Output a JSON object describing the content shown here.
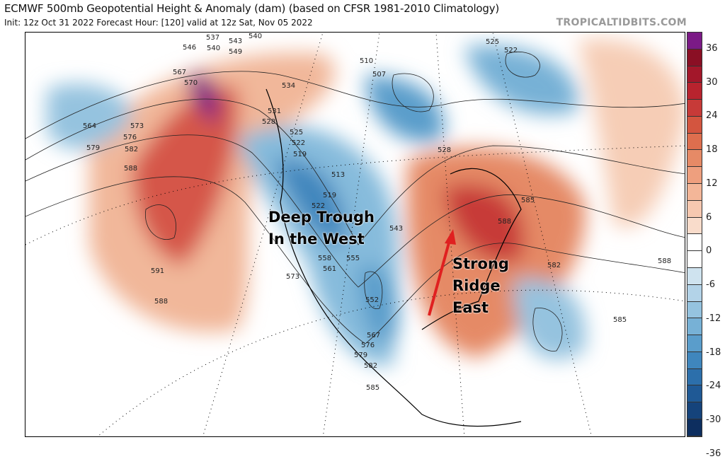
{
  "header": {
    "title": "ECMWF 500mb Geopotential Height & Anomaly (dam) (based on CFSR 1981-2010 Climatology)",
    "subtitle": "Init: 12z Oct 31 2022   Forecast Hour: [120]   valid at 12z Sat, Nov 05 2022",
    "brand": "TROPICALTIDBITS.COM"
  },
  "annotations": {
    "trough": [
      "Deep Trough",
      "In the West"
    ],
    "ridge": [
      "Strong",
      "Ridge",
      "East"
    ],
    "arrow_color": "#e02020"
  },
  "contour_labels": [
    "537",
    "540",
    "543",
    "546",
    "549",
    "540",
    "567",
    "570",
    "534",
    "531",
    "528",
    "525",
    "522",
    "519",
    "564",
    "573",
    "576",
    "579",
    "582",
    "588",
    "591",
    "588",
    "510",
    "507",
    "525",
    "522",
    "528",
    "513",
    "519",
    "522",
    "543",
    "555",
    "558",
    "561",
    "573",
    "552",
    "567",
    "576",
    "579",
    "582",
    "585",
    "585",
    "588",
    "582",
    "585",
    "588"
  ],
  "colorbar": {
    "ticks": [
      "36",
      "30",
      "24",
      "18",
      "12",
      "6",
      "0",
      "-6",
      "-12",
      "-18",
      "-24",
      "-30",
      "-36"
    ],
    "colors": [
      "#7b1a86",
      "#8a0f24",
      "#a3172a",
      "#b8232e",
      "#c73a38",
      "#d3553f",
      "#dd6e4e",
      "#e68a66",
      "#ee9f7e",
      "#f3b698",
      "#f6c8b0",
      "#f9dccb",
      "#ffffff",
      "#ffffff",
      "#cfe3ef",
      "#b3d3e8",
      "#95c3df",
      "#77b1d6",
      "#5a9dcb",
      "#3f86bd",
      "#2c6fab",
      "#1f5995",
      "#15437b",
      "#0d2e5f"
    ]
  }
}
